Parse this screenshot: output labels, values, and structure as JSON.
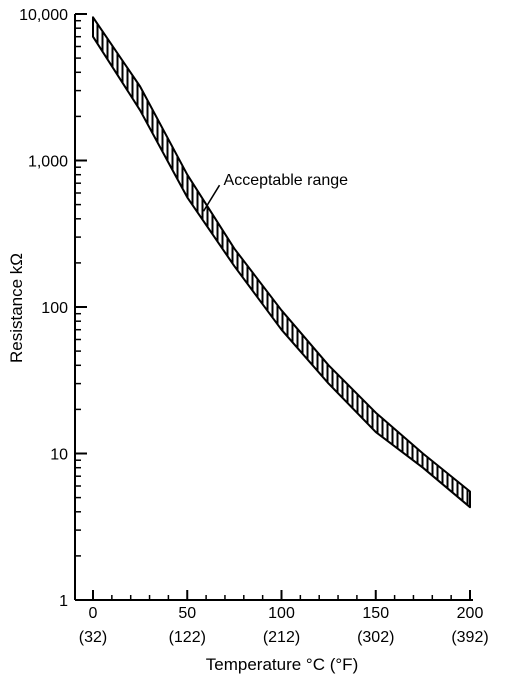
{
  "chart_data": {
    "type": "area",
    "xlabel": "Temperature °C (°F)",
    "ylabel": "Resistance kΩ",
    "xlim": [
      0,
      200
    ],
    "ylim": [
      1,
      10000
    ],
    "yscale": "log",
    "grid": false,
    "x_ticks": [
      {
        "c": "0",
        "f": "(32)"
      },
      {
        "c": "50",
        "f": "(122)"
      },
      {
        "c": "100",
        "f": "(212)"
      },
      {
        "c": "150",
        "f": "(302)"
      },
      {
        "c": "200",
        "f": "(392)"
      }
    ],
    "y_ticks": [
      "1",
      "10",
      "100",
      "1,000",
      "10,000"
    ],
    "series": [
      {
        "name": "Acceptable range",
        "x": [
          0,
          25,
          50,
          75,
          100,
          125,
          150,
          175,
          200
        ],
        "upper": [
          9500,
          3200,
          800,
          250,
          95,
          40,
          19,
          10,
          5.5
        ],
        "lower": [
          7000,
          2200,
          560,
          190,
          70,
          30,
          14,
          8,
          4.3
        ]
      }
    ],
    "annotation": {
      "text": "Acceptable range",
      "x": 65,
      "y": 700
    }
  }
}
